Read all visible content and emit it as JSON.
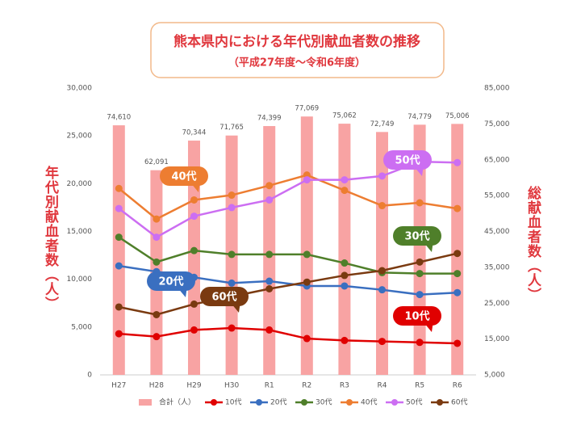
{
  "chart_data": {
    "type": "combo",
    "title": "熊本県内における年代別献血者数の推移",
    "subtitle": "（平成27年度～令和6年度）",
    "y_label": "年代別献血者数（人）",
    "y2_label": "総献血者数（人）",
    "categories": [
      "H27",
      "H28",
      "H29",
      "H30",
      "R1",
      "R2",
      "R3",
      "R4",
      "R5",
      "R6"
    ],
    "ylim": [
      0,
      30000
    ],
    "yticks": [
      {
        "value": 0,
        "label": "0"
      },
      {
        "value": 5000,
        "label": "5,000"
      },
      {
        "value": 10000,
        "label": "10,000"
      },
      {
        "value": 15000,
        "label": "15,000"
      },
      {
        "value": 20000,
        "label": "20,000"
      },
      {
        "value": 25000,
        "label": "25,000"
      },
      {
        "value": 30000,
        "label": "30,000"
      }
    ],
    "y2lim": [
      5000,
      85000
    ],
    "y2ticks": [
      {
        "value": 5000,
        "label": "5,000"
      },
      {
        "value": 15000,
        "label": "15,000"
      },
      {
        "value": 25000,
        "label": "25,000"
      },
      {
        "value": 35000,
        "label": "35,000"
      },
      {
        "value": 45000,
        "label": "45,000"
      },
      {
        "value": 55000,
        "label": "55,000"
      },
      {
        "value": 65000,
        "label": "65,000"
      },
      {
        "value": 75000,
        "label": "75,000"
      },
      {
        "value": 85000,
        "label": "85,000"
      }
    ],
    "grid": false,
    "legend": "bottom",
    "series": [
      {
        "name": "合計（人）",
        "type": "bar",
        "axis": "y2",
        "color": "#f8a3a3",
        "values": [
          74610,
          62091,
          70344,
          71765,
          74399,
          77069,
          75062,
          72749,
          74779,
          75006
        ],
        "value_labels": [
          "74,610",
          "62,091",
          "70,344",
          "71,765",
          "74,399",
          "77,069",
          "75,062",
          "72,749",
          "74,779",
          "75,006"
        ]
      },
      {
        "name": "10代",
        "type": "line",
        "color": "#e00000",
        "values": [
          4300,
          4000,
          4700,
          4900,
          4700,
          3800,
          3600,
          3500,
          3400,
          3300
        ]
      },
      {
        "name": "20代",
        "type": "line",
        "color": "#3a6fc0",
        "values": [
          11400,
          10800,
          10200,
          9600,
          9800,
          9300,
          9300,
          8900,
          8400,
          8600
        ]
      },
      {
        "name": "30代",
        "type": "line",
        "color": "#4f7f2a",
        "values": [
          14400,
          11800,
          13000,
          12600,
          12600,
          12600,
          11700,
          10700,
          10600,
          10600
        ]
      },
      {
        "name": "40代",
        "type": "line",
        "color": "#ed7d31",
        "values": [
          19500,
          16300,
          18300,
          18800,
          19800,
          20900,
          19300,
          17700,
          18000,
          17400
        ]
      },
      {
        "name": "50代",
        "type": "line",
        "color": "#cc6ef2",
        "values": [
          17400,
          14400,
          16600,
          17500,
          18300,
          20400,
          20400,
          20800,
          22300,
          22200
        ]
      },
      {
        "name": "60代",
        "type": "line",
        "color": "#7a3a10",
        "values": [
          7100,
          6300,
          7400,
          8200,
          9000,
          9700,
          10400,
          10900,
          11800,
          12700
        ]
      }
    ]
  }
}
